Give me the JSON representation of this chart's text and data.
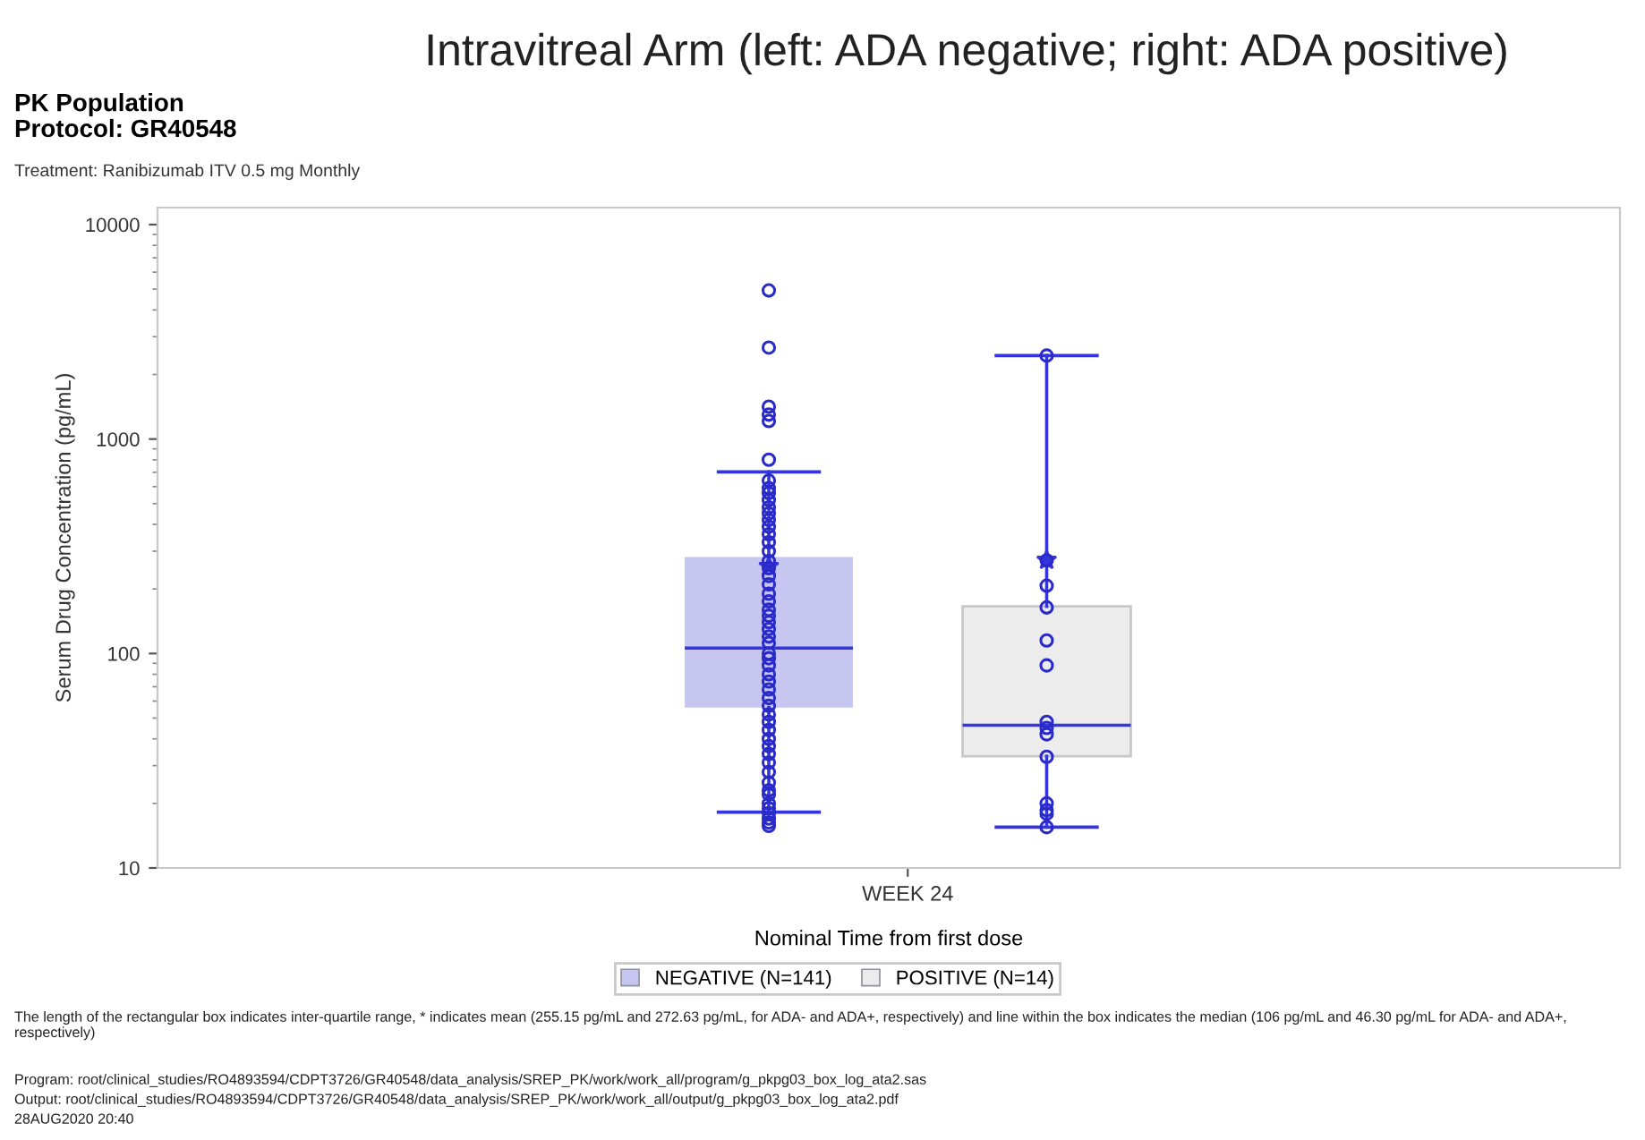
{
  "chart_data": {
    "type": "box",
    "title": "Intravitreal Arm (left: ADA negative; right: ADA positive)",
    "subtitle": "PK Population\nProtocol: GR40548",
    "xlabel": "Nominal Time from first dose",
    "ylabel": "Serum Drug Concentration (pg/mL)",
    "categories": [
      "WEEK 24"
    ],
    "series": [
      {
        "name": "NEGATIVE (N=141)",
        "color": "#c6c6f0",
        "boxes": [
          {
            "low": 18.2,
            "q1": 56,
            "median": 106,
            "q3": 282,
            "high": 703,
            "mean": 255.15,
            "outliers": [
              4930,
              2670,
              1415,
              1300,
              1213,
              801,
              640,
              590,
              560,
              520,
              480,
              450,
              420,
              390,
              360,
              330,
              300,
              270,
              250,
              230,
              210,
              190,
              175,
              160,
              150,
              140,
              130,
              120,
              112,
              100,
              95,
              88,
              80,
              74,
              68,
              62,
              57,
              52,
              48,
              44,
              40,
              37,
              34,
              31,
              28,
              25,
              23,
              22,
              20,
              19,
              18,
              17,
              16.3,
              15.7
            ]
          }
        ]
      },
      {
        "name": "POSITIVE (N=14)",
        "color": "#ececec",
        "boxes": [
          {
            "low": 15.5,
            "q1": 33.2,
            "median": 46.3,
            "q3": 166,
            "high": 2450,
            "mean": 272.63,
            "outliers": [
              2450,
              272,
              207,
              164,
              115,
              88,
              48,
              45,
              42,
              33,
              20,
              18.6,
              17.9,
              15.5
            ]
          }
        ]
      }
    ],
    "ylim": [
      10,
      12000
    ],
    "yticks": [
      10,
      100,
      1000,
      10000
    ],
    "log": "y",
    "grid": false,
    "legend": "bottom",
    "marker": "circle",
    "annotations": [
      "Treatment: Ranibizumab ITV 0.5 mg Monthly",
      "The length of the rectangular box indicates inter-quartile range, * indicates mean (255.15 pg/mL and 272.63 pg/mL, for ADA- and ADA+, respectively) and line within the box indicates the median (106 pg/mL and 46.30 pg/mL for ADA- and ADA+, respectively)",
      "Program: root/clinical_studies/RO4893594/CDPT3726/GR40548/data_analysis/SREP_PK/work/work_all/program/g_pkpg03_box_log_ata2.sas",
      "Output: root/clinical_studies/RO4893594/CDPT3726/GR40548/data_analysis/SREP_PK/work/work_all/output/g_pkpg03_box_log_ata2.pdf",
      "28AUG2020 20:40"
    ]
  }
}
